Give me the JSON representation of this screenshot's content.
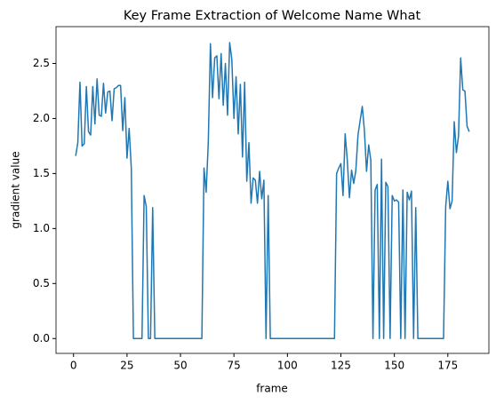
{
  "chart_data": {
    "type": "line",
    "title": "Key Frame Extraction of Welcome Name What",
    "xlabel": "frame",
    "ylabel": "gradient value",
    "x": [
      1,
      2,
      3,
      4,
      5,
      6,
      7,
      8,
      9,
      10,
      11,
      12,
      13,
      14,
      15,
      16,
      17,
      18,
      19,
      20,
      21,
      22,
      23,
      24,
      25,
      26,
      27,
      28,
      29,
      30,
      31,
      32,
      33,
      34,
      35,
      36,
      37,
      38,
      39,
      40,
      41,
      42,
      43,
      44,
      45,
      46,
      47,
      48,
      49,
      50,
      51,
      52,
      53,
      54,
      55,
      56,
      57,
      58,
      59,
      60,
      61,
      62,
      63,
      64,
      65,
      66,
      67,
      68,
      69,
      70,
      71,
      72,
      73,
      74,
      75,
      76,
      77,
      78,
      79,
      80,
      81,
      82,
      83,
      84,
      85,
      86,
      87,
      88,
      89,
      90,
      91,
      92,
      93,
      94,
      95,
      96,
      97,
      98,
      99,
      100,
      101,
      102,
      103,
      104,
      105,
      106,
      107,
      108,
      109,
      110,
      111,
      112,
      113,
      114,
      115,
      116,
      117,
      118,
      119,
      120,
      121,
      122,
      123,
      124,
      125,
      126,
      127,
      128,
      129,
      130,
      131,
      132,
      133,
      134,
      135,
      136,
      137,
      138,
      139,
      140,
      141,
      142,
      143,
      144,
      145,
      146,
      147,
      148,
      149,
      150,
      151,
      152,
      153,
      154,
      155,
      156,
      157,
      158,
      159,
      160,
      161,
      162,
      163,
      164,
      165,
      166,
      167,
      168,
      169,
      170,
      171,
      172,
      173,
      174,
      175,
      176,
      177,
      178,
      179,
      180,
      181,
      182,
      183,
      184,
      185
    ],
    "series": [
      {
        "name": "gradient",
        "color": "#1f77b4",
        "values": [
          1.66,
          1.78,
          2.33,
          1.75,
          1.77,
          2.29,
          1.88,
          1.85,
          2.29,
          1.95,
          2.36,
          2.03,
          2.02,
          2.32,
          2.05,
          2.24,
          2.25,
          1.98,
          2.27,
          2.28,
          2.3,
          2.3,
          1.89,
          2.19,
          1.64,
          1.91,
          1.55,
          0,
          0,
          0,
          0,
          0,
          1.3,
          1.2,
          0,
          0,
          1.19,
          0,
          0,
          0,
          0,
          0,
          0,
          0,
          0,
          0,
          0,
          0,
          0,
          0,
          0,
          0,
          0,
          0,
          0,
          0,
          0,
          0,
          0,
          0,
          1.55,
          1.33,
          1.78,
          2.68,
          2.19,
          2.55,
          2.57,
          2.18,
          2.59,
          2.12,
          2.5,
          2.03,
          2.69,
          2.54,
          2.0,
          2.38,
          1.86,
          2.31,
          1.65,
          2.33,
          1.43,
          1.78,
          1.23,
          1.46,
          1.44,
          1.23,
          1.52,
          1.27,
          1.44,
          0,
          1.3,
          0,
          0,
          0,
          0,
          0,
          0,
          0,
          0,
          0,
          0,
          0,
          0,
          0,
          0,
          0,
          0,
          0,
          0,
          0,
          0,
          0,
          0,
          0,
          0,
          0,
          0,
          0,
          0,
          0,
          0,
          0,
          1.5,
          1.55,
          1.59,
          1.3,
          1.86,
          1.62,
          1.28,
          1.53,
          1.41,
          1.53,
          1.85,
          1.98,
          2.11,
          1.89,
          1.52,
          1.76,
          1.62,
          0,
          1.35,
          1.4,
          0,
          1.63,
          0,
          1.42,
          1.38,
          0,
          1.3,
          1.25,
          1.26,
          1.24,
          0,
          1.35,
          0,
          1.33,
          1.26,
          1.34,
          0,
          1.19,
          0,
          0,
          0,
          0,
          0,
          0,
          0,
          0,
          0,
          0,
          0,
          0,
          0,
          1.2,
          1.43,
          1.18,
          1.25,
          1.97,
          1.69,
          1.84,
          2.55,
          2.26,
          2.25,
          1.93,
          1.88
        ]
      }
    ],
    "xlim": [
      -8.2,
      194.2
    ],
    "xticks": [
      0,
      25,
      50,
      75,
      100,
      125,
      150,
      175
    ],
    "ylim": [
      -0.135,
      2.835
    ],
    "yticks": [
      {
        "value": 0,
        "label": "0.0"
      },
      {
        "value": 0.5,
        "label": "0.5"
      },
      {
        "value": 1,
        "label": "1.0"
      },
      {
        "value": 1.5,
        "label": "1.5"
      },
      {
        "value": 2,
        "label": "2.0"
      },
      {
        "value": 2.5,
        "label": "2.5"
      }
    ],
    "grid": false
  }
}
